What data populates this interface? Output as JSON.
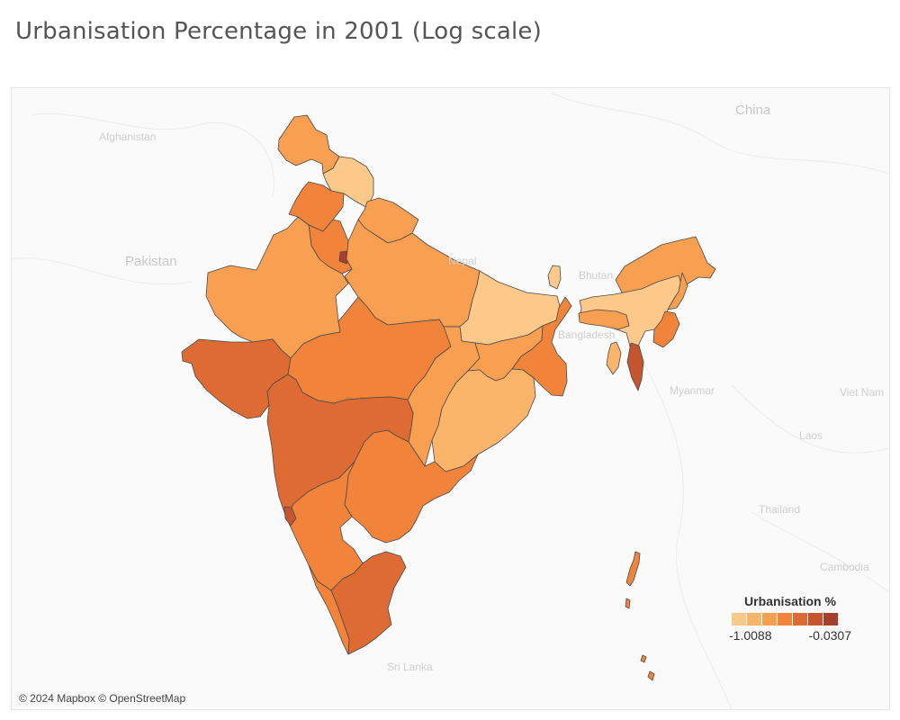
{
  "title": "Urbanisation Percentage in 2001 (Log scale)",
  "legend": {
    "title": "Urbanisation %",
    "min_label": "-1.0088",
    "max_label": "-0.0307",
    "colors": [
      "#fdc98a",
      "#fbb56b",
      "#f89f51",
      "#f1843a",
      "#de6b34",
      "#c4552f",
      "#a6402b"
    ]
  },
  "attribution": "© 2024 Mapbox © OpenStreetMap",
  "basemap_labels": [
    "Afghanistan",
    "Pakistan",
    "Nepal",
    "Bhutan",
    "Bangladesh",
    "Myanmar",
    "China",
    "Laos",
    "Thailand",
    "Cambodia",
    "Viet Nam",
    "Sri Lanka"
  ],
  "map_data": {
    "type": "choropleth",
    "value_field": "Urbanisation %",
    "scale": "log",
    "value_range": [
      -1.0088,
      -0.0307
    ],
    "regions": [
      {
        "name": "Jammu and Kashmir",
        "shade": 2
      },
      {
        "name": "Himachal Pradesh",
        "shade": 0
      },
      {
        "name": "Punjab",
        "shade": 3
      },
      {
        "name": "Chandigarh",
        "shade": 6
      },
      {
        "name": "Uttaranchal",
        "shade": 2
      },
      {
        "name": "Haryana",
        "shade": 3
      },
      {
        "name": "Delhi",
        "shade": 6
      },
      {
        "name": "Rajasthan",
        "shade": 2
      },
      {
        "name": "Uttar Pradesh",
        "shade": 2
      },
      {
        "name": "Bihar",
        "shade": 0
      },
      {
        "name": "Gujarat",
        "shade": 4
      },
      {
        "name": "Madhya Pradesh",
        "shade": 3
      },
      {
        "name": "Chhattisgarh",
        "shade": 2
      },
      {
        "name": "Jharkhand",
        "shade": 2
      },
      {
        "name": "West Bengal",
        "shade": 3
      },
      {
        "name": "Orissa",
        "shade": 1
      },
      {
        "name": "Maharashtra",
        "shade": 4
      },
      {
        "name": "Andhra Pradesh",
        "shade": 3
      },
      {
        "name": "Karnataka",
        "shade": 3
      },
      {
        "name": "Goa",
        "shade": 5
      },
      {
        "name": "Kerala",
        "shade": 3
      },
      {
        "name": "Tamil Nadu",
        "shade": 4
      },
      {
        "name": "Sikkim",
        "shade": 0
      },
      {
        "name": "Arunachal Pradesh",
        "shade": 2
      },
      {
        "name": "Assam",
        "shade": 0
      },
      {
        "name": "Nagaland",
        "shade": 2
      },
      {
        "name": "Meghalaya",
        "shade": 2
      },
      {
        "name": "Manipur",
        "shade": 3
      },
      {
        "name": "Tripura",
        "shade": 1
      },
      {
        "name": "Mizoram",
        "shade": 5
      },
      {
        "name": "Andaman and Nicobar Islands",
        "shade": 3
      }
    ]
  }
}
